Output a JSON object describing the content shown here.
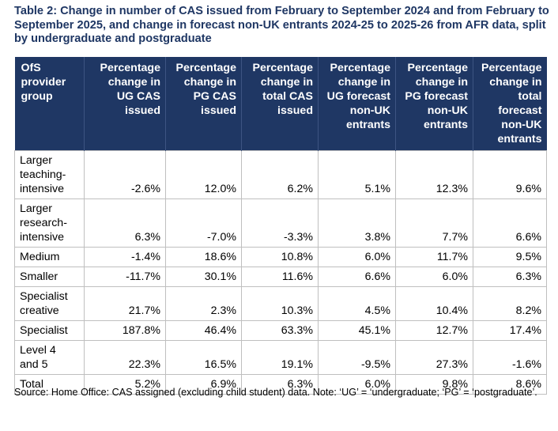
{
  "caption": "Table 2: Change in number of CAS issued from February to September 2024 and from February to September 2025, and change in forecast non-UK entrants 2024-25 to 2025-26 from AFR data, split by undergraduate and postgraduate",
  "headers": [
    "OfS\nprovider\ngroup",
    "Percentage\nchange in\nUG CAS\nissued",
    "Percentage\nchange in\nPG CAS\nissued",
    "Percentage\nchange in\ntotal CAS\nissued",
    "Percentage\nchange in\nUG forecast\nnon-UK\nentrants",
    "Percentage\nchange in\nPG forecast\nnon-UK\nentrants",
    "Percentage\nchange in\ntotal\nforecast\nnon-UK\nentrants"
  ],
  "rows": [
    [
      "Larger\nteaching-\nintensive",
      "-2.6%",
      "12.0%",
      "6.2%",
      "5.1%",
      "12.3%",
      "9.6%"
    ],
    [
      "Larger\nresearch-\nintensive",
      "6.3%",
      "-7.0%",
      "-3.3%",
      "3.8%",
      "7.7%",
      "6.6%"
    ],
    [
      "Medium",
      "-1.4%",
      "18.6%",
      "10.8%",
      "6.0%",
      "11.7%",
      "9.5%"
    ],
    [
      "Smaller",
      "-11.7%",
      "30.1%",
      "11.6%",
      "6.6%",
      "6.0%",
      "6.3%"
    ],
    [
      "Specialist\ncreative",
      "21.7%",
      "2.3%",
      "10.3%",
      "4.5%",
      "10.4%",
      "8.2%"
    ],
    [
      "Specialist",
      "187.8%",
      "46.4%",
      "63.3%",
      "45.1%",
      "12.7%",
      "17.4%"
    ],
    [
      "Level 4\nand 5",
      "22.3%",
      "16.5%",
      "19.1%",
      "-9.5%",
      "27.3%",
      "-1.6%"
    ],
    [
      "Total",
      "5.2%",
      "6.9%",
      "6.3%",
      "6.0%",
      "9.8%",
      "8.6%"
    ]
  ],
  "note": "Source: Home Office: CAS assigned (excluding child student) data. Note: ‘UG’ = ‘undergraduate; ‘PG’ = ‘postgraduate’.",
  "colors": {
    "header_bg": "#1f3764",
    "caption": "#1f3764",
    "grid": "#bfbfbf"
  }
}
